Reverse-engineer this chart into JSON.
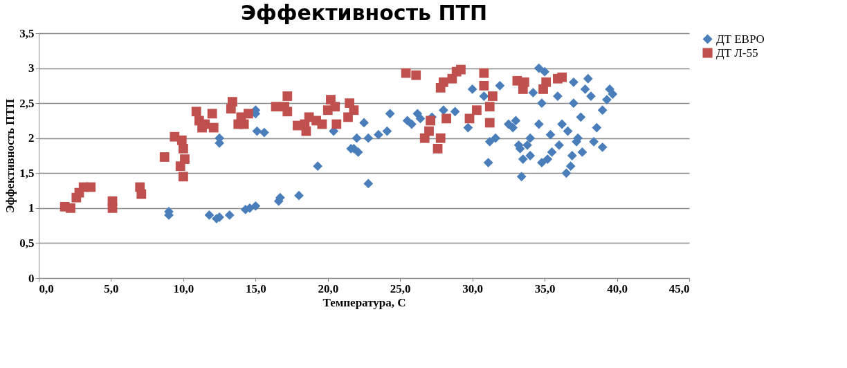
{
  "chart_data": {
    "type": "scatter",
    "title": "Эффективность ПТП",
    "xlabel": "Температура, С",
    "ylabel": "Эффективность ПТП",
    "xlim": [
      0,
      45
    ],
    "ylim": [
      0,
      3.5
    ],
    "xticks": [
      {
        "value": 0,
        "label": "0,0"
      },
      {
        "value": 5,
        "label": "5,0"
      },
      {
        "value": 10,
        "label": "10,0"
      },
      {
        "value": 15,
        "label": "15,0"
      },
      {
        "value": 20,
        "label": "20,0"
      },
      {
        "value": 25,
        "label": "25,0"
      },
      {
        "value": 30,
        "label": "30,0"
      },
      {
        "value": 35,
        "label": "35,0"
      },
      {
        "value": 40,
        "label": "40,0"
      },
      {
        "value": 45,
        "label": "45,0"
      }
    ],
    "yticks": [
      0,
      {
        "value": 0.5,
        "label": "0,5"
      },
      1,
      {
        "value": 1.5,
        "label": "1,5"
      },
      2,
      {
        "value": 2.5,
        "label": "2,5"
      },
      3,
      {
        "value": 3.5,
        "label": "3,5"
      }
    ],
    "grid": "y",
    "legend": "right",
    "series": [
      {
        "name": "ДТ ЕВРО",
        "color": "#4a7ebb",
        "marker": "diamond",
        "x": [
          9.0,
          9.0,
          11.8,
          12.3,
          12.5,
          13.2,
          14.3,
          14.6,
          15.0,
          12.5,
          12.5,
          15.0,
          15.0,
          15.1,
          15.6,
          16.6,
          16.7,
          18.0,
          19.3,
          20.4,
          21.6,
          21.8,
          22.1,
          22.8,
          22.0,
          22.5,
          22.8,
          23.5,
          24.3,
          24.1,
          25.5,
          25.8,
          26.2,
          26.4,
          27.2,
          28.0,
          28.8,
          29.7,
          30.0,
          30.8,
          31.1,
          31.2,
          31.6,
          31.9,
          32.5,
          33.0,
          33.2,
          33.4,
          33.5,
          33.3,
          33.8,
          34.0,
          34.2,
          34.6,
          35.0,
          34.8,
          34.6,
          34.8,
          35.2,
          35.5,
          35.4,
          35.9,
          36.0,
          36.5,
          36.8,
          36.6,
          37.0,
          37.0,
          37.2,
          37.5,
          37.6,
          37.8,
          38.0,
          38.2,
          38.4,
          38.6,
          39.0,
          39.0,
          39.3,
          39.5,
          39.7,
          36.2,
          36.9,
          37.3,
          34.0,
          32.8
        ],
        "values": [
          0.95,
          0.9,
          0.9,
          0.85,
          0.87,
          0.9,
          0.98,
          1.0,
          1.03,
          2.0,
          1.93,
          2.35,
          2.4,
          2.1,
          2.08,
          1.1,
          1.15,
          1.18,
          1.6,
          2.1,
          1.85,
          1.85,
          1.8,
          1.35,
          2.0,
          2.22,
          2.0,
          2.05,
          2.35,
          2.1,
          2.25,
          2.2,
          2.35,
          2.28,
          2.3,
          2.4,
          2.38,
          2.15,
          2.7,
          2.6,
          1.65,
          1.95,
          2.0,
          2.75,
          2.2,
          2.25,
          1.9,
          1.45,
          1.7,
          1.85,
          1.9,
          2.0,
          2.65,
          3.0,
          2.95,
          2.5,
          2.2,
          1.65,
          1.7,
          1.8,
          2.05,
          2.6,
          1.9,
          1.5,
          1.6,
          2.1,
          2.5,
          2.8,
          1.95,
          2.3,
          1.8,
          2.7,
          2.85,
          2.6,
          1.95,
          2.15,
          2.4,
          1.87,
          2.55,
          2.7,
          2.63,
          2.2,
          1.75,
          2.0,
          1.75,
          2.15
        ]
      },
      {
        "name": "ДТ Л-55",
        "color": "#c0504d",
        "marker": "square",
        "x": [
          1.8,
          2.2,
          2.6,
          2.8,
          3.1,
          3.6,
          5.1,
          5.1,
          7.0,
          7.1,
          8.7,
          9.4,
          9.9,
          9.8,
          10.0,
          10.1,
          10.0,
          10.9,
          11.1,
          11.3,
          11.5,
          12.0,
          12.1,
          13.3,
          13.4,
          13.8,
          14.0,
          14.5,
          14.2,
          16.4,
          17.0,
          17.2,
          17.2,
          17.9,
          18.4,
          18.5,
          18.7,
          19.2,
          19.6,
          20.0,
          20.2,
          20.5,
          20.6,
          21.4,
          21.5,
          21.8,
          25.4,
          26.1,
          26.7,
          27.0,
          27.1,
          27.6,
          27.8,
          27.8,
          28.0,
          28.2,
          28.6,
          28.9,
          29.2,
          29.8,
          30.3,
          30.8,
          30.8,
          31.2,
          31.4,
          31.2,
          33.1,
          33.5,
          33.6,
          34.9,
          35.1,
          36.2,
          35.9
        ],
        "values": [
          1.02,
          1.0,
          1.15,
          1.22,
          1.3,
          1.3,
          1.1,
          1.0,
          1.3,
          1.2,
          1.73,
          2.02,
          1.97,
          1.6,
          1.45,
          1.7,
          1.85,
          2.38,
          2.25,
          2.15,
          2.2,
          2.35,
          2.15,
          2.42,
          2.52,
          2.2,
          2.3,
          2.35,
          2.2,
          2.45,
          2.45,
          2.6,
          2.38,
          2.18,
          2.2,
          2.1,
          2.3,
          2.25,
          2.2,
          2.4,
          2.55,
          2.45,
          2.2,
          2.3,
          2.5,
          2.4,
          2.93,
          2.9,
          2.0,
          2.1,
          2.25,
          1.85,
          2.0,
          2.72,
          2.8,
          2.28,
          2.85,
          2.95,
          2.98,
          2.28,
          2.4,
          2.93,
          2.75,
          2.45,
          2.6,
          2.22,
          2.82,
          2.7,
          2.8,
          2.7,
          2.8,
          2.87,
          2.85
        ]
      }
    ]
  }
}
